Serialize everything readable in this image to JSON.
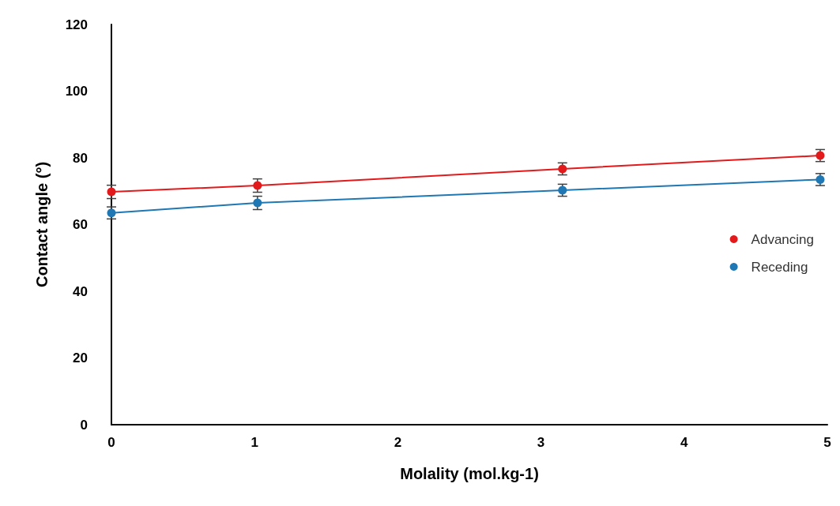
{
  "chart_data": {
    "type": "line",
    "xlabel": "Molality (mol.kg-1)",
    "ylabel": "Contact angle (°)",
    "xlim": [
      0,
      5
    ],
    "xticks": [
      0,
      1,
      2,
      3,
      4,
      5
    ],
    "ylim": [
      0,
      120
    ],
    "yticks": [
      0,
      20,
      40,
      60,
      80,
      100,
      120
    ],
    "grid": false,
    "legend": "right",
    "marker": "circle",
    "x": [
      0,
      1.02,
      3.15,
      4.95
    ],
    "series": [
      {
        "name": "Advancing",
        "color": "#e31a1c",
        "values": [
          69.8,
          71.7,
          76.7,
          80.7
        ],
        "errors": [
          2,
          2,
          1.8,
          1.8
        ]
      },
      {
        "name": "Receding",
        "color": "#1f77b4",
        "values": [
          63.5,
          66.5,
          70.3,
          73.5
        ],
        "errors": [
          1.8,
          2,
          1.8,
          1.8
        ]
      }
    ]
  }
}
